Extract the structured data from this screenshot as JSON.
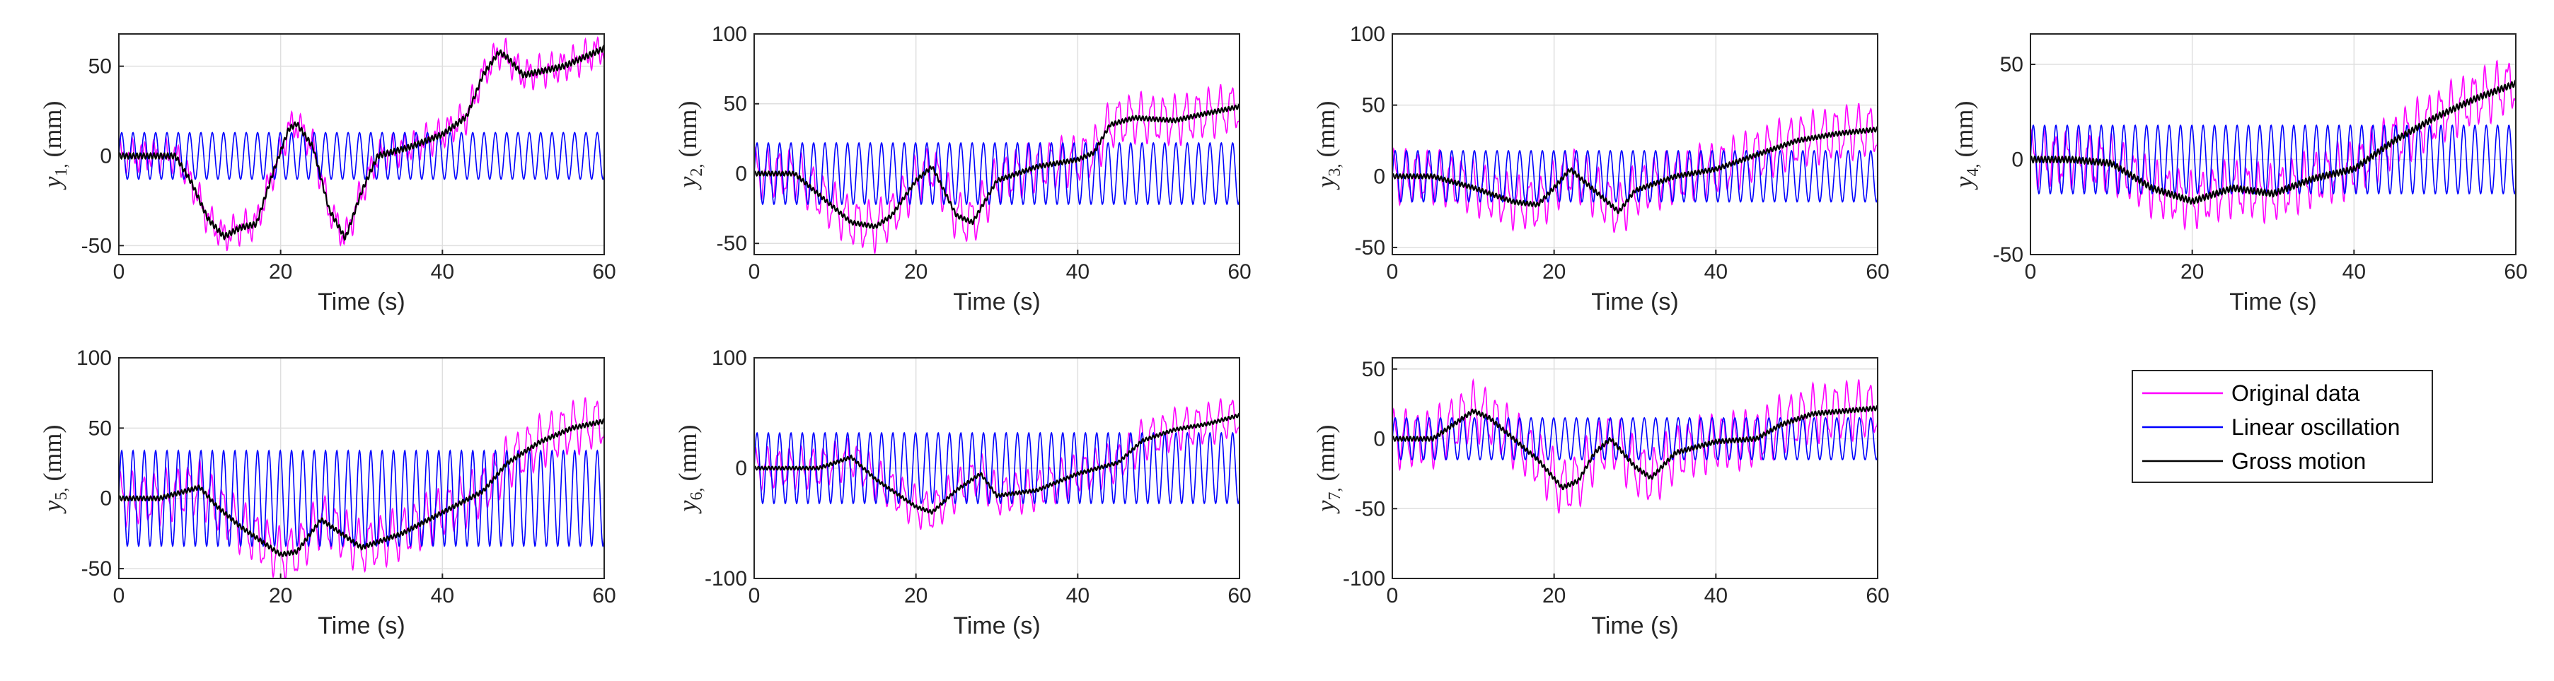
{
  "figure": {
    "legend": {
      "entries": [
        {
          "label": "Original data",
          "color": "#ff00ff"
        },
        {
          "label": "Linear oscillation",
          "color": "#0000ff"
        },
        {
          "label": "Gross motion",
          "color": "#000000"
        }
      ]
    }
  },
  "chart_data": [
    {
      "type": "line",
      "id": "y1",
      "ylabel_sym": "y",
      "ylabel_sub": "1,",
      "ylabel_unit": "(mm)",
      "xlabel": "Time (s)",
      "xlim": [
        0,
        60
      ],
      "ylim": [
        -55,
        68
      ],
      "xticks": [
        0,
        20,
        40,
        60
      ],
      "yticks": [
        -50,
        0,
        50
      ],
      "grid": true,
      "osc_amp": 13,
      "orig_amp": 6,
      "osc_period": 1.4,
      "gross": [
        [
          0,
          0
        ],
        [
          2,
          0
        ],
        [
          7,
          0
        ],
        [
          9,
          -15
        ],
        [
          11,
          -35
        ],
        [
          13,
          -45
        ],
        [
          15,
          -40
        ],
        [
          17,
          -38
        ],
        [
          19,
          -10
        ],
        [
          21,
          15
        ],
        [
          22,
          18
        ],
        [
          24,
          5
        ],
        [
          26,
          -30
        ],
        [
          28,
          -46
        ],
        [
          30,
          -20
        ],
        [
          32,
          0
        ],
        [
          36,
          5
        ],
        [
          40,
          12
        ],
        [
          43,
          22
        ],
        [
          45,
          45
        ],
        [
          47,
          58
        ],
        [
          48,
          55
        ],
        [
          50,
          45
        ],
        [
          55,
          50
        ],
        [
          60,
          60
        ]
      ]
    },
    {
      "type": "line",
      "id": "y2",
      "ylabel_sym": "y",
      "ylabel_sub": "2,",
      "ylabel_unit": "(mm)",
      "xlabel": "Time (s)",
      "xlim": [
        0,
        60
      ],
      "ylim": [
        -58,
        100
      ],
      "xticks": [
        0,
        20,
        40,
        60
      ],
      "yticks": [
        -50,
        0,
        50,
        100
      ],
      "grid": true,
      "osc_amp": 22,
      "orig_amp": 15,
      "osc_period": 1.4,
      "gross": [
        [
          0,
          0
        ],
        [
          5,
          0
        ],
        [
          10,
          -25
        ],
        [
          12,
          -35
        ],
        [
          15,
          -38
        ],
        [
          17,
          -30
        ],
        [
          20,
          -5
        ],
        [
          22,
          5
        ],
        [
          25,
          -30
        ],
        [
          27,
          -35
        ],
        [
          30,
          -5
        ],
        [
          35,
          5
        ],
        [
          40,
          10
        ],
        [
          42,
          15
        ],
        [
          44,
          35
        ],
        [
          47,
          40
        ],
        [
          52,
          38
        ],
        [
          55,
          42
        ],
        [
          60,
          48
        ]
      ]
    },
    {
      "type": "line",
      "id": "y3",
      "ylabel_sym": "y",
      "ylabel_sub": "3,",
      "ylabel_unit": "(mm)",
      "xlabel": "Time (s)",
      "xlim": [
        0,
        60
      ],
      "ylim": [
        -55,
        100
      ],
      "xticks": [
        0,
        20,
        40,
        60
      ],
      "yticks": [
        -50,
        0,
        50,
        100
      ],
      "grid": true,
      "osc_amp": 18,
      "orig_amp": 16,
      "osc_period": 1.4,
      "gross": [
        [
          0,
          0
        ],
        [
          5,
          0
        ],
        [
          10,
          -8
        ],
        [
          15,
          -18
        ],
        [
          18,
          -20
        ],
        [
          20,
          -8
        ],
        [
          22,
          5
        ],
        [
          24,
          -5
        ],
        [
          28,
          -25
        ],
        [
          30,
          -10
        ],
        [
          35,
          0
        ],
        [
          40,
          5
        ],
        [
          45,
          15
        ],
        [
          50,
          25
        ],
        [
          55,
          30
        ],
        [
          60,
          33
        ]
      ]
    },
    {
      "type": "line",
      "id": "y4",
      "ylabel_sym": "y",
      "ylabel_sub": "4,",
      "ylabel_unit": "(mm)",
      "xlabel": "Time (s)",
      "xlim": [
        0,
        60
      ],
      "ylim": [
        -50,
        66
      ],
      "xticks": [
        0,
        20,
        40,
        60
      ],
      "yticks": [
        -50,
        0,
        50
      ],
      "grid": true,
      "osc_amp": 18,
      "orig_amp": 12,
      "osc_period": 1.4,
      "gross": [
        [
          0,
          0
        ],
        [
          5,
          0
        ],
        [
          10,
          -2
        ],
        [
          15,
          -15
        ],
        [
          20,
          -22
        ],
        [
          25,
          -15
        ],
        [
          30,
          -18
        ],
        [
          35,
          -10
        ],
        [
          40,
          -5
        ],
        [
          45,
          10
        ],
        [
          50,
          22
        ],
        [
          55,
          32
        ],
        [
          60,
          40
        ]
      ]
    },
    {
      "type": "line",
      "id": "y5",
      "ylabel_sym": "y",
      "ylabel_sub": "5,",
      "ylabel_unit": "(mm)",
      "xlabel": "Time (s)",
      "xlim": [
        0,
        60
      ],
      "ylim": [
        -57,
        100
      ],
      "xticks": [
        0,
        20,
        40,
        60
      ],
      "yticks": [
        -50,
        0,
        50,
        100
      ],
      "grid": true,
      "osc_amp": 34,
      "orig_amp": 16,
      "osc_period": 1.4,
      "gross": [
        [
          0,
          0
        ],
        [
          5,
          0
        ],
        [
          10,
          8
        ],
        [
          12,
          -5
        ],
        [
          15,
          -20
        ],
        [
          20,
          -40
        ],
        [
          22,
          -38
        ],
        [
          25,
          -15
        ],
        [
          30,
          -35
        ],
        [
          35,
          -25
        ],
        [
          40,
          -10
        ],
        [
          45,
          5
        ],
        [
          48,
          25
        ],
        [
          52,
          40
        ],
        [
          56,
          50
        ],
        [
          60,
          55
        ]
      ]
    },
    {
      "type": "line",
      "id": "y6",
      "ylabel_sym": "y",
      "ylabel_sub": "6,",
      "ylabel_unit": "(mm)",
      "xlabel": "Time (s)",
      "xlim": [
        0,
        60
      ],
      "ylim": [
        -100,
        100
      ],
      "xticks": [
        0,
        20,
        40,
        60
      ],
      "yticks": [
        -100,
        0,
        100
      ],
      "grid": true,
      "osc_amp": 32,
      "orig_amp": 16,
      "osc_period": 1.4,
      "gross": [
        [
          0,
          0
        ],
        [
          8,
          0
        ],
        [
          12,
          10
        ],
        [
          15,
          -10
        ],
        [
          20,
          -35
        ],
        [
          22,
          -40
        ],
        [
          25,
          -20
        ],
        [
          28,
          -5
        ],
        [
          30,
          -25
        ],
        [
          35,
          -20
        ],
        [
          40,
          -5
        ],
        [
          45,
          5
        ],
        [
          48,
          25
        ],
        [
          52,
          35
        ],
        [
          56,
          40
        ],
        [
          60,
          48
        ]
      ]
    },
    {
      "type": "line",
      "id": "y7",
      "ylabel_sym": "y",
      "ylabel_sub": "7,",
      "ylabel_unit": "(mm)",
      "xlabel": "Time (s)",
      "xlim": [
        0,
        60
      ],
      "ylim": [
        -100,
        58
      ],
      "xticks": [
        0,
        20,
        40,
        60
      ],
      "yticks": [
        -100,
        -50,
        0,
        50
      ],
      "grid": true,
      "osc_amp": 15,
      "orig_amp": 18,
      "osc_period": 1.4,
      "gross": [
        [
          0,
          0
        ],
        [
          5,
          0
        ],
        [
          10,
          20
        ],
        [
          12,
          15
        ],
        [
          15,
          0
        ],
        [
          18,
          -15
        ],
        [
          21,
          -35
        ],
        [
          23,
          -30
        ],
        [
          25,
          -10
        ],
        [
          27,
          0
        ],
        [
          30,
          -20
        ],
        [
          32,
          -28
        ],
        [
          35,
          -10
        ],
        [
          40,
          -2
        ],
        [
          45,
          0
        ],
        [
          48,
          10
        ],
        [
          52,
          18
        ],
        [
          56,
          20
        ],
        [
          60,
          22
        ]
      ]
    }
  ]
}
